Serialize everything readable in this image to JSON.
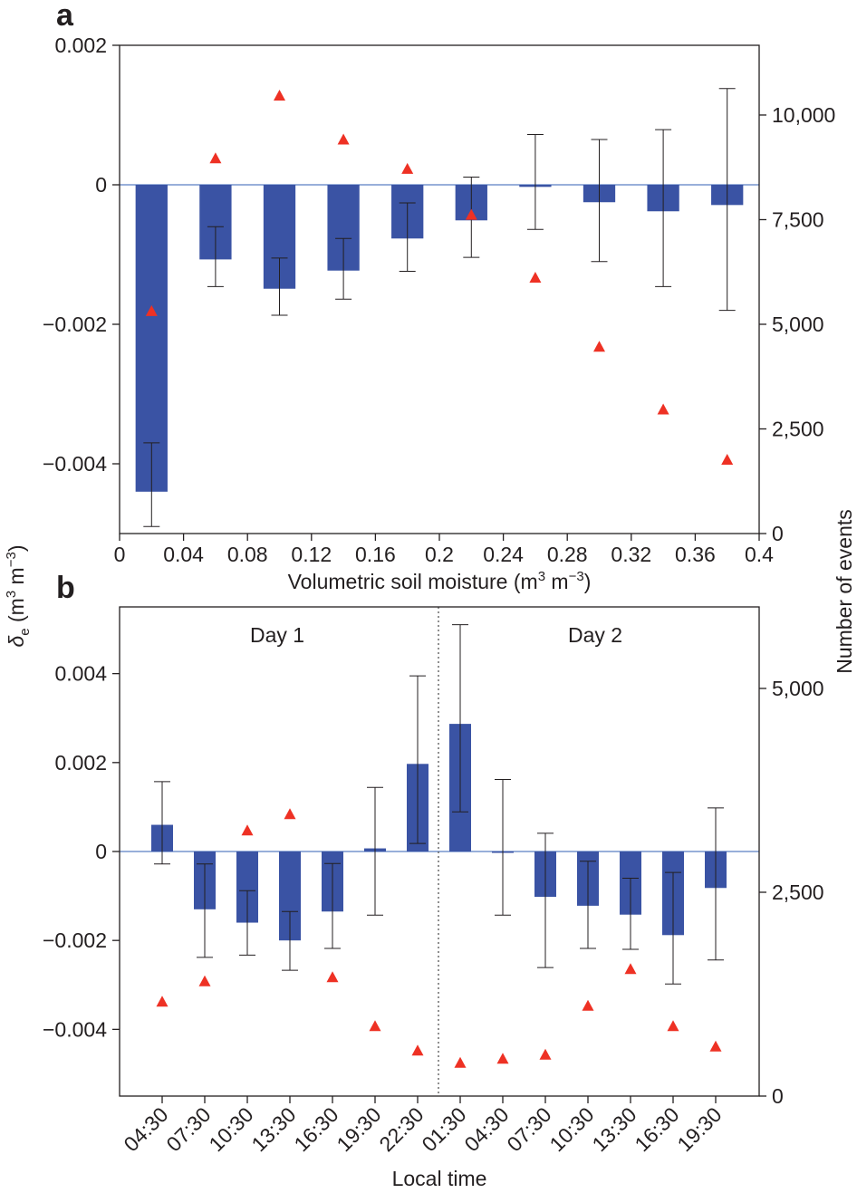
{
  "colors": {
    "bar": "#3a53a4",
    "marker": "#ee3124",
    "zero_line": "#5b7fc4",
    "axis": "#231f20"
  },
  "shared_ylabel": "δe (m³ m⁻³)",
  "shared_ylabel_parts": {
    "symbol": "δ",
    "sub": "e",
    "open": " (m",
    "sup1": "3",
    "mid": " m",
    "sup2": "−3",
    "close": ")"
  },
  "shared_y2label": "Number of events",
  "chart_data": [
    {
      "panel": "a",
      "type": "bar",
      "overlay": "scatter (right axis, red triangles)",
      "xlabel": "Volumetric soil moisture (m³ m⁻³)",
      "xlabel_parts": {
        "pre": "Volumetric soil moisture (m",
        "sup1": "3",
        "mid": " m",
        "sup2": "−3",
        "post": ")"
      },
      "xlim": [
        0,
        0.4
      ],
      "xticks": [
        0,
        0.04,
        0.08,
        0.12,
        0.16,
        0.2,
        0.24,
        0.28,
        0.32,
        0.36,
        0.4
      ],
      "xtick_labels": [
        "0",
        "0.04",
        "0.08",
        "0.12",
        "0.16",
        "0.2",
        "0.24",
        "0.28",
        "0.32",
        "0.36",
        "0.4"
      ],
      "ylim": [
        -0.005,
        0.002
      ],
      "yticks": [
        -0.004,
        -0.002,
        0,
        0.002
      ],
      "ytick_labels": [
        "−0.004",
        "−0.002",
        "0",
        "0.002"
      ],
      "y2lim": [
        0,
        11666
      ],
      "y2ticks": [
        0,
        2500,
        5000,
        7500,
        10000
      ],
      "y2tick_labels": [
        "0",
        "2,500",
        "5,000",
        "7,500",
        "10,000"
      ],
      "bar_width": 0.02,
      "x": [
        0.02,
        0.06,
        0.1,
        0.14,
        0.18,
        0.22,
        0.26,
        0.3,
        0.34,
        0.38
      ],
      "series": [
        {
          "values": [
            -0.0044,
            -0.00107,
            -0.00149,
            -0.00123,
            -0.00077,
            -0.00051,
            -3e-05,
            -0.00025,
            -0.00038,
            -0.00029
          ],
          "err_low": [
            -0.0049,
            -0.00146,
            -0.00187,
            -0.00164,
            -0.00124,
            -0.00104,
            -0.00064,
            -0.0011,
            -0.00146,
            -0.0018
          ],
          "err_high": [
            -0.0037,
            -0.0006,
            -0.00105,
            -0.00077,
            -0.00026,
            0.00011,
            0.00072,
            0.00065,
            0.00079,
            0.00138
          ]
        },
        {
          "axis": "right",
          "values": [
            5300,
            8950,
            10450,
            9400,
            8700,
            7600,
            6100,
            4450,
            2950,
            1750
          ]
        }
      ]
    },
    {
      "panel": "b",
      "type": "bar",
      "overlay": "scatter (right axis, red triangles)",
      "xlabel": "Local time",
      "categories": [
        "04:30",
        "07:30",
        "10:30",
        "13:30",
        "16:30",
        "19:30",
        "22:30",
        "01:30",
        "04:30",
        "07:30",
        "10:30",
        "13:30",
        "16:30",
        "19:30"
      ],
      "annotations": [
        "Day 1",
        "Day 2"
      ],
      "ylim": [
        -0.0055,
        0.0055
      ],
      "yticks": [
        -0.004,
        -0.002,
        0,
        0.002,
        0.004
      ],
      "ytick_labels": [
        "−0.004",
        "−0.002",
        "0",
        "0.002",
        "0.004"
      ],
      "y2lim": [
        0,
        6000
      ],
      "y2ticks": [
        0,
        2500,
        5000
      ],
      "y2tick_labels": [
        "0",
        "2,500",
        "5,000"
      ],
      "series": [
        {
          "values": [
            0.0006,
            -0.0013,
            -0.0016,
            -0.002,
            -0.00135,
            7e-05,
            0.00197,
            0.00287,
            -2e-05,
            -0.00102,
            -0.00122,
            -0.00142,
            -0.00188,
            -0.00082
          ],
          "err_low": [
            -0.00028,
            -0.00238,
            -0.00233,
            -0.00267,
            -0.00218,
            -0.00143,
            0.00018,
            0.00089,
            -0.00143,
            -0.00261,
            -0.00218,
            -0.0022,
            -0.00298,
            -0.00244
          ],
          "err_high": [
            0.00157,
            -0.00028,
            -0.00088,
            -0.00135,
            -0.00027,
            0.00144,
            0.00395,
            0.0051,
            0.00162,
            0.00041,
            -0.00022,
            -0.0006,
            -0.00047,
            0.00098
          ]
        },
        {
          "axis": "right",
          "values": [
            1150,
            1400,
            3250,
            3450,
            1450,
            850,
            550,
            400,
            450,
            500,
            1100,
            1550,
            850,
            600
          ]
        }
      ]
    }
  ]
}
